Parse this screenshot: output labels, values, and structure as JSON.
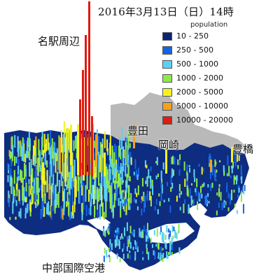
{
  "title": "2016年3月13日（日）14時",
  "legend": {
    "title": "population",
    "items": [
      {
        "label": "10 - 250",
        "color": "#0b2475"
      },
      {
        "label": "250 - 500",
        "color": "#1565e3"
      },
      {
        "label": "500 - 1000",
        "color": "#5bd2f5"
      },
      {
        "label": "1000 - 2000",
        "color": "#8ee84a"
      },
      {
        "label": "2000 - 5000",
        "color": "#f7f21e"
      },
      {
        "label": "5000 - 10000",
        "color": "#f4a21a"
      },
      {
        "label": "10000 - 20000",
        "color": "#e01b10"
      }
    ]
  },
  "places": {
    "nagoya": "名駅周辺",
    "toyota": "豊田",
    "okazaki": "岡崎",
    "toyohashi": "豊橋",
    "airport": "中部国際空港"
  },
  "colors": {
    "background": "#ffffff",
    "land_gray": "#b9b9b9",
    "land_dark": "#0e2c80"
  }
}
